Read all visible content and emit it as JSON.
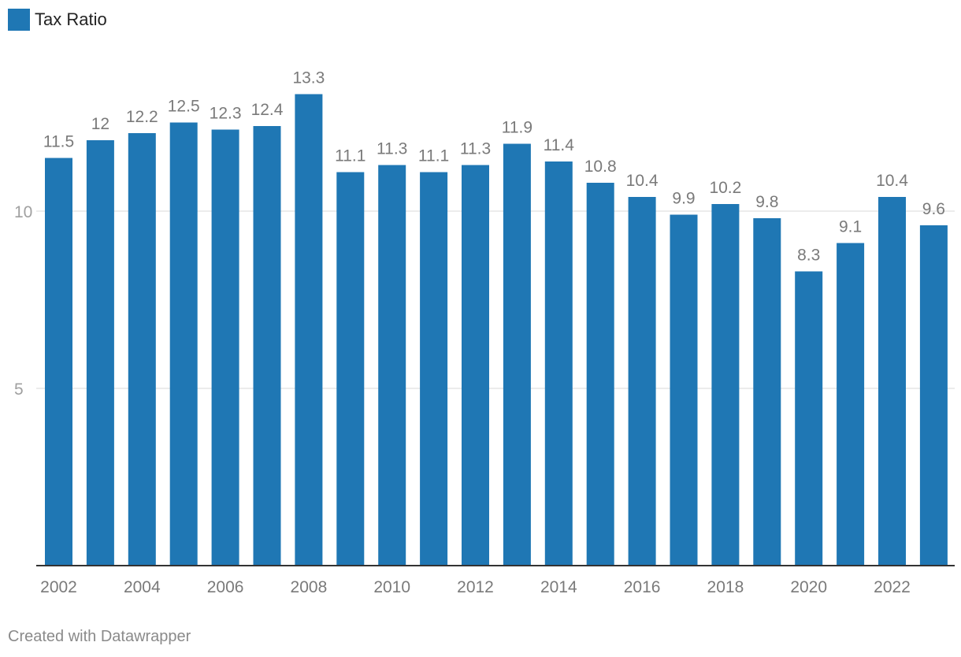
{
  "legend": {
    "label": "Tax Ratio",
    "color": "#1f77b4"
  },
  "footer": {
    "credit": "Created with Datawrapper"
  },
  "colors": {
    "bar": "#1f77b4",
    "label": "#7a7a7a",
    "grid": "#e6e6e6",
    "axis": "#333333",
    "tick": "#a0a0a0"
  },
  "chart_data": {
    "type": "bar",
    "title": "",
    "xlabel": "",
    "ylabel": "",
    "legend": [
      "Tax Ratio"
    ],
    "legend_position": "top-left",
    "grid": true,
    "ylim": [
      0,
      14
    ],
    "yticks": [
      5,
      10
    ],
    "xticks": [
      "2002",
      "2004",
      "2006",
      "2008",
      "2010",
      "2012",
      "2014",
      "2016",
      "2018",
      "2020",
      "2022"
    ],
    "categories": [
      "2002",
      "2003",
      "2004",
      "2005",
      "2006",
      "2007",
      "2008",
      "2009",
      "2010",
      "2011",
      "2012",
      "2013",
      "2014",
      "2015",
      "2016",
      "2017",
      "2018",
      "2019",
      "2020",
      "2021",
      "2022",
      "2023"
    ],
    "series": [
      {
        "name": "Tax Ratio",
        "values": [
          11.5,
          12,
          12.2,
          12.5,
          12.3,
          12.4,
          13.3,
          11.1,
          11.3,
          11.1,
          11.3,
          11.9,
          11.4,
          10.8,
          10.4,
          9.9,
          10.2,
          9.8,
          8.3,
          9.1,
          10.4,
          9.6
        ],
        "labels": [
          "11.5",
          "12",
          "12.2",
          "12.5",
          "12.3",
          "12.4",
          "13.3",
          "11.1",
          "11.3",
          "11.1",
          "11.3",
          "11.9",
          "11.4",
          "10.8",
          "10.4",
          "9.9",
          "10.2",
          "9.8",
          "8.3",
          "9.1",
          "10.4",
          "9.6"
        ]
      }
    ]
  }
}
